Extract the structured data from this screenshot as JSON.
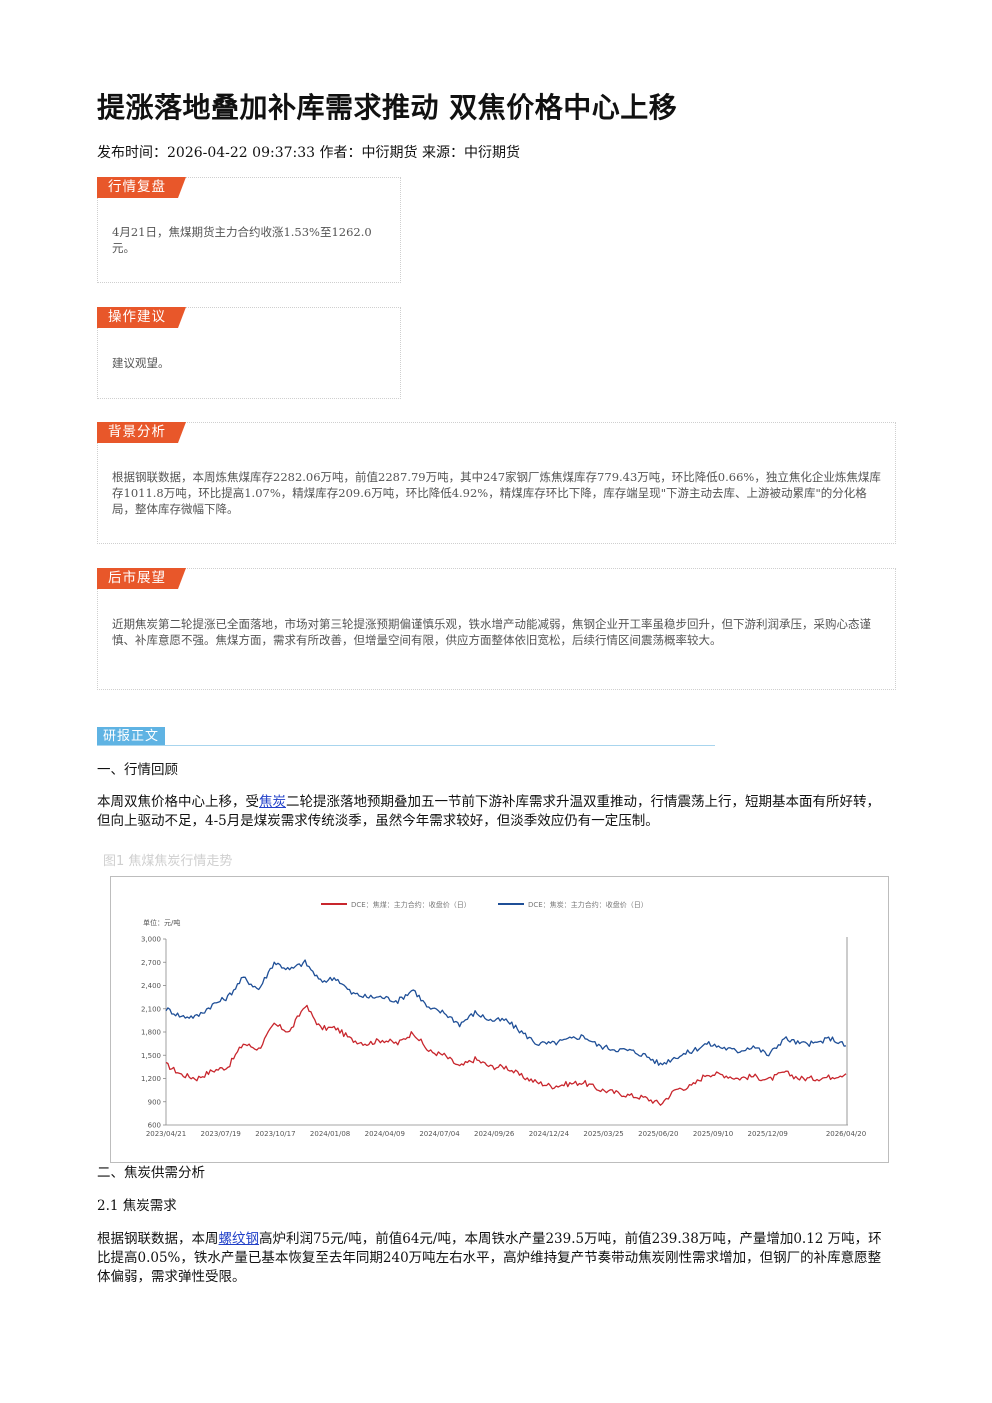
{
  "article": {
    "title": "提涨落地叠加补库需求推动 双焦价格中心上移",
    "meta": "发布时间：2026-04-22 09:37:33 作者：中衍期货 来源：中衍期货"
  },
  "cards": {
    "review": {
      "tag": "行情复盘",
      "text": "4月21日，焦煤期货主力合约收涨1.53%至1262.0元。"
    },
    "advice": {
      "tag": "操作建议",
      "text": "建议观望。"
    },
    "background": {
      "tag": "背景分析",
      "text": "根据钢联数据，本周炼焦煤库存2282.06万吨，前值2287.79万吨，其中247家钢厂炼焦煤库存779.43万吨，环比降低0.66%，独立焦化企业炼焦煤库存1011.8万吨，环比提高1.07%，精煤库存209.6万吨，环比降低4.92%，精煤库存环比下降，库存端呈现\"下游主动去库、上游被动累库\"的分化格局，整体库存微幅下降。"
    },
    "outlook": {
      "tag": "后市展望",
      "text": "近期焦炭第二轮提涨已全面落地，市场对第三轮提涨预期偏谨慎乐观，铁水增产动能减弱，焦钢企业开工率虽稳步回升，但下游利润承压，采购心态谨慎、补库意愿不强。焦煤方面，需求有所改善，但增量空间有限，供应方面整体依旧宽松，后续行情区间震荡概率较大。"
    }
  },
  "report": {
    "tag": "研报正文",
    "s1_heading": "一、行情回顾",
    "s1_before_link": "本周双焦价格中心上移，受",
    "s1_link": "焦炭",
    "s1_after_link": "二轮提涨落地预期叠加五一节前下游补库需求升温双重推动，行情震荡上行，短期基本面有所好转，但向上驱动不足，4-5月是煤炭需求传统淡季，虽然今年需求较好，但淡季效应仍有一定压制。",
    "figure_caption": "图1 焦煤焦炭行情走势",
    "s2_heading": "二、焦炭供需分析",
    "s21_heading": "2.1 焦炭需求",
    "s21_before_link": "根据钢联数据，本周",
    "s21_link": "螺纹钢",
    "s21_after_link": "高炉利润75元/吨，前值64元/吨，本周铁水产量239.5万吨，前值239.38万吨，产量增加0.12 万吨，环比提高0.05%，铁水产量已基本恢复至去年同期240万吨左右水平，高炉维持复产节奏带动焦炭刚性需求增加，但钢厂的补库意愿整体偏弱，需求弹性受限。"
  },
  "chart_data": {
    "type": "line",
    "unit_label": "单位：元/吨",
    "ylim": [
      600,
      3000
    ],
    "y_ticks": [
      "600",
      "900",
      "1,200",
      "1,500",
      "1,800",
      "2,100",
      "2,400",
      "2,700",
      "3,000"
    ],
    "x_ticks": [
      "2023/04/21",
      "2023/07/19",
      "2023/10/17",
      "2024/01/08",
      "2024/04/09",
      "2024/07/04",
      "2024/09/26",
      "2024/12/24",
      "2025/03/25",
      "2025/06/20",
      "2025/09/10",
      "2025/12/09",
      "2026/04/20"
    ],
    "series": [
      {
        "name": "DCE：焦煤：主力合约：收盘价（日）",
        "color": "#c8262d",
        "values": [
          1380,
          1250,
          1200,
          1300,
          1350,
          1650,
          1580,
          1900,
          1800,
          2150,
          1850,
          1850,
          1700,
          1650,
          1700,
          1650,
          1800,
          1550,
          1500,
          1350,
          1450,
          1350,
          1350,
          1230,
          1150,
          1100,
          1130,
          1150,
          1060,
          1020,
          980,
          950,
          870,
          1060,
          1100,
          1260,
          1250,
          1200,
          1230,
          1180,
          1280,
          1200,
          1200,
          1220,
          1262
        ]
      },
      {
        "name": "DCE：焦炭：主力合约：收盘价（日）",
        "color": "#1f4f97",
        "values": [
          2100,
          2000,
          2000,
          2150,
          2250,
          2500,
          2350,
          2700,
          2600,
          2700,
          2450,
          2500,
          2300,
          2250,
          2250,
          2200,
          2350,
          2100,
          2050,
          1900,
          2050,
          1950,
          1950,
          1800,
          1650,
          1650,
          1700,
          1750,
          1620,
          1580,
          1560,
          1500,
          1380,
          1480,
          1550,
          1650,
          1600,
          1550,
          1620,
          1500,
          1720,
          1650,
          1650,
          1720,
          1620
        ]
      }
    ],
    "grid": false,
    "legend": "top"
  }
}
